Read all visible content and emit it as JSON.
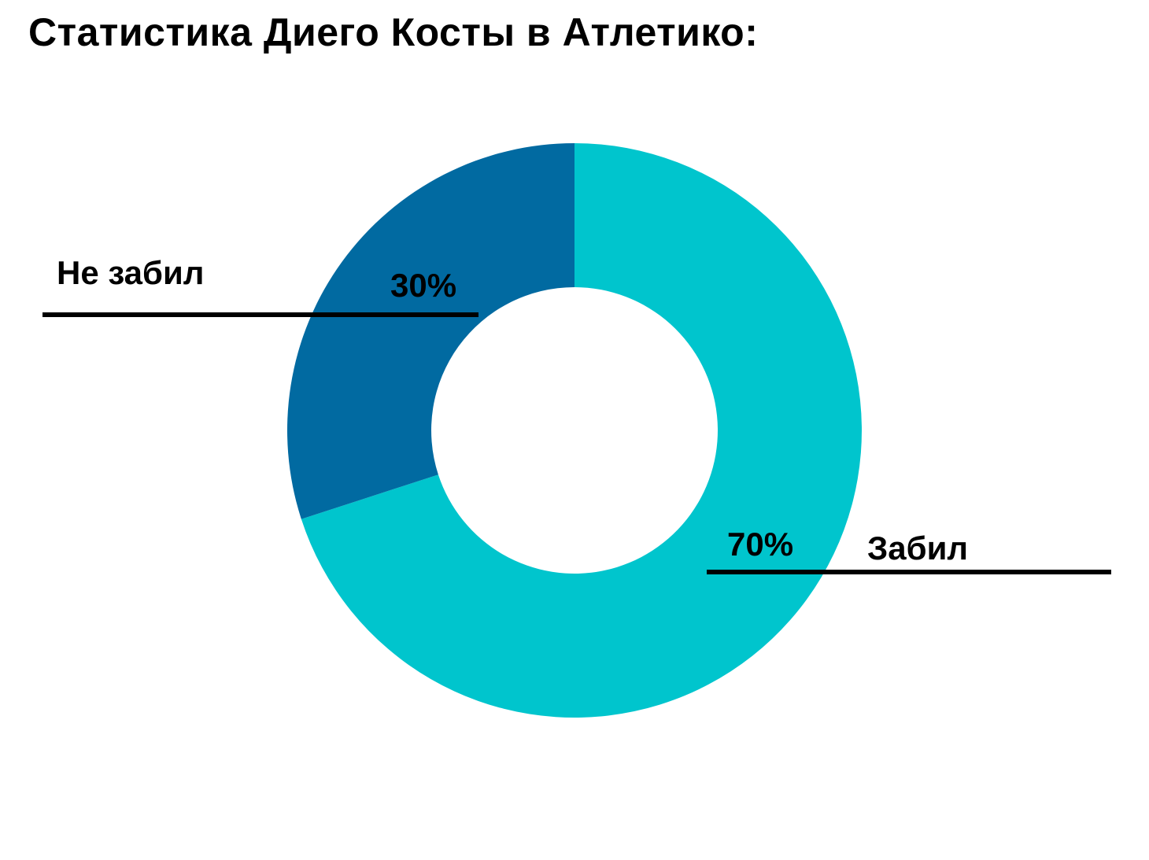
{
  "chart_data": {
    "type": "pie",
    "title": "Статистика Диего Косты в Атлетико:",
    "donut": true,
    "slices": [
      {
        "label": "Забил",
        "value": 70,
        "value_label": "70%",
        "color": "#00c5cd"
      },
      {
        "label": "Не забил",
        "value": 30,
        "value_label": "30%",
        "color": "#016aa1"
      }
    ],
    "legend": "none"
  }
}
